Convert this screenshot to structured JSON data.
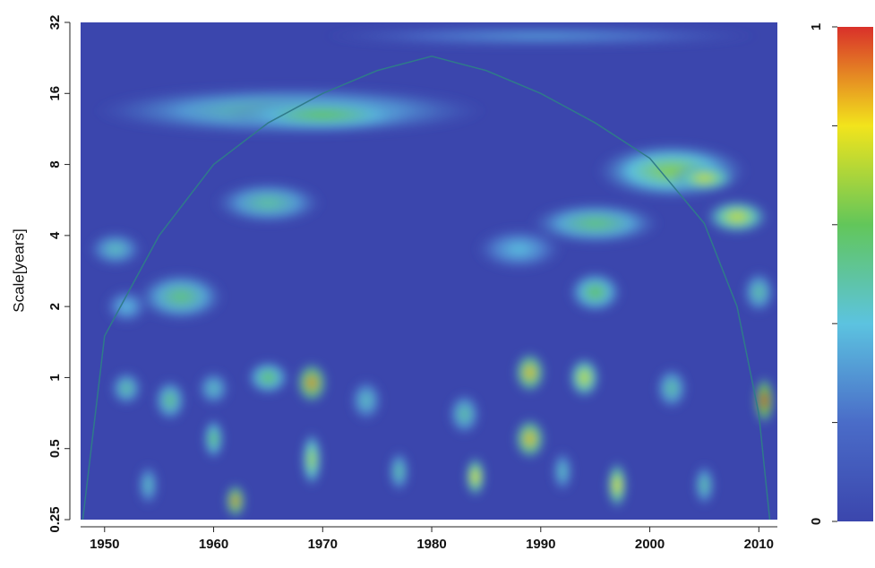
{
  "chart_data": {
    "type": "heatmap",
    "y_label": "Scale[years]",
    "xlim": [
      1947.8,
      2011.7
    ],
    "xticks": [
      1950,
      1960,
      1970,
      1980,
      1990,
      2000,
      2010
    ],
    "ylim": [
      0.25,
      32
    ],
    "log_y": true,
    "yticks": [
      0.25,
      0.5,
      1,
      2,
      4,
      8,
      16,
      32
    ],
    "clim": [
      0,
      1
    ],
    "cticks": [
      0,
      1
    ],
    "colormap": [
      "#3b46ad",
      "#4a6cc8",
      "#5cc3e0",
      "#62c65a",
      "#f2e41c",
      "#d9302a"
    ],
    "cone_of_influence": {
      "x": [
        1948,
        1950,
        1955,
        1960,
        1965,
        1970,
        1975,
        1980,
        1985,
        1990,
        1995,
        2000,
        2005,
        2008,
        2010,
        2011
      ],
      "y": [
        0.25,
        1.5,
        4,
        8,
        12,
        16,
        20,
        23,
        20,
        16,
        12,
        8.5,
        4.5,
        2,
        0.7,
        0.25
      ],
      "color": "#2f7a8a"
    },
    "features": [
      {
        "x": 1990,
        "scale": 28,
        "width": 40,
        "height": 0.3,
        "power": 0.3
      },
      {
        "x": 1967,
        "scale": 13.5,
        "width": 36,
        "height": 0.7,
        "power": 0.5
      },
      {
        "x": 1970,
        "scale": 13,
        "width": 18,
        "height": 0.5,
        "power": 0.6
      },
      {
        "x": 1988,
        "scale": 3.5,
        "width": 8,
        "height": 0.6,
        "power": 0.4
      },
      {
        "x": 1952,
        "scale": 2,
        "width": 4,
        "height": 0.5,
        "power": 0.4
      },
      {
        "x": 1951,
        "scale": 3.5,
        "width": 5,
        "height": 0.5,
        "power": 0.45
      },
      {
        "x": 1965,
        "scale": 5.5,
        "width": 10,
        "height": 0.6,
        "power": 0.5
      },
      {
        "x": 1995,
        "scale": 4.5,
        "width": 12,
        "height": 0.6,
        "power": 0.55
      },
      {
        "x": 2002,
        "scale": 7.5,
        "width": 14,
        "height": 0.8,
        "power": 0.65
      },
      {
        "x": 2005,
        "scale": 7,
        "width": 6,
        "height": 0.4,
        "power": 0.75
      },
      {
        "x": 2008,
        "scale": 4.8,
        "width": 6,
        "height": 0.5,
        "power": 0.75
      },
      {
        "x": 1957,
        "scale": 2.2,
        "width": 8,
        "height": 0.7,
        "power": 0.55
      },
      {
        "x": 1995,
        "scale": 2.3,
        "width": 5,
        "height": 0.6,
        "power": 0.6
      },
      {
        "x": 2010,
        "scale": 2.3,
        "width": 3,
        "height": 0.6,
        "power": 0.5
      },
      {
        "x": 1954,
        "scale": 0.35,
        "width": 2,
        "height": 0.6,
        "power": 0.45
      },
      {
        "x": 1992,
        "scale": 0.4,
        "width": 2,
        "height": 0.6,
        "power": 0.45
      },
      {
        "x": 1974,
        "scale": 0.8,
        "width": 3,
        "height": 0.6,
        "power": 0.45
      },
      {
        "x": 1960,
        "scale": 0.9,
        "width": 3,
        "height": 0.5,
        "power": 0.45
      },
      {
        "x": 1952,
        "scale": 0.9,
        "width": 3,
        "height": 0.5,
        "power": 0.5
      },
      {
        "x": 1983,
        "scale": 0.7,
        "width": 3,
        "height": 0.6,
        "power": 0.5
      },
      {
        "x": 2002,
        "scale": 0.9,
        "width": 3,
        "height": 0.6,
        "power": 0.5
      },
      {
        "x": 2005,
        "scale": 0.35,
        "width": 2,
        "height": 0.6,
        "power": 0.5
      },
      {
        "x": 1977,
        "scale": 0.4,
        "width": 2,
        "height": 0.6,
        "power": 0.5
      },
      {
        "x": 1956,
        "scale": 0.8,
        "width": 3,
        "height": 0.6,
        "power": 0.55
      },
      {
        "x": 1965,
        "scale": 1,
        "width": 4,
        "height": 0.5,
        "power": 0.6
      },
      {
        "x": 1960,
        "scale": 0.55,
        "width": 2,
        "height": 0.6,
        "power": 0.6
      },
      {
        "x": 1969,
        "scale": 0.45,
        "width": 2,
        "height": 0.8,
        "power": 0.7
      },
      {
        "x": 1994,
        "scale": 1,
        "width": 3,
        "height": 0.6,
        "power": 0.75
      },
      {
        "x": 1984,
        "scale": 0.38,
        "width": 2,
        "height": 0.6,
        "power": 0.8
      },
      {
        "x": 1997,
        "scale": 0.35,
        "width": 2,
        "height": 0.7,
        "power": 0.8
      },
      {
        "x": 1989,
        "scale": 1.05,
        "width": 3,
        "height": 0.6,
        "power": 0.85
      },
      {
        "x": 1989,
        "scale": 0.55,
        "width": 3,
        "height": 0.6,
        "power": 0.85
      },
      {
        "x": 1969,
        "scale": 0.95,
        "width": 3,
        "height": 0.6,
        "power": 0.9
      },
      {
        "x": 1962,
        "scale": 0.3,
        "width": 2,
        "height": 0.5,
        "power": 0.9
      },
      {
        "x": 2010.5,
        "scale": 0.8,
        "width": 2,
        "height": 0.7,
        "power": 1
      }
    ]
  }
}
